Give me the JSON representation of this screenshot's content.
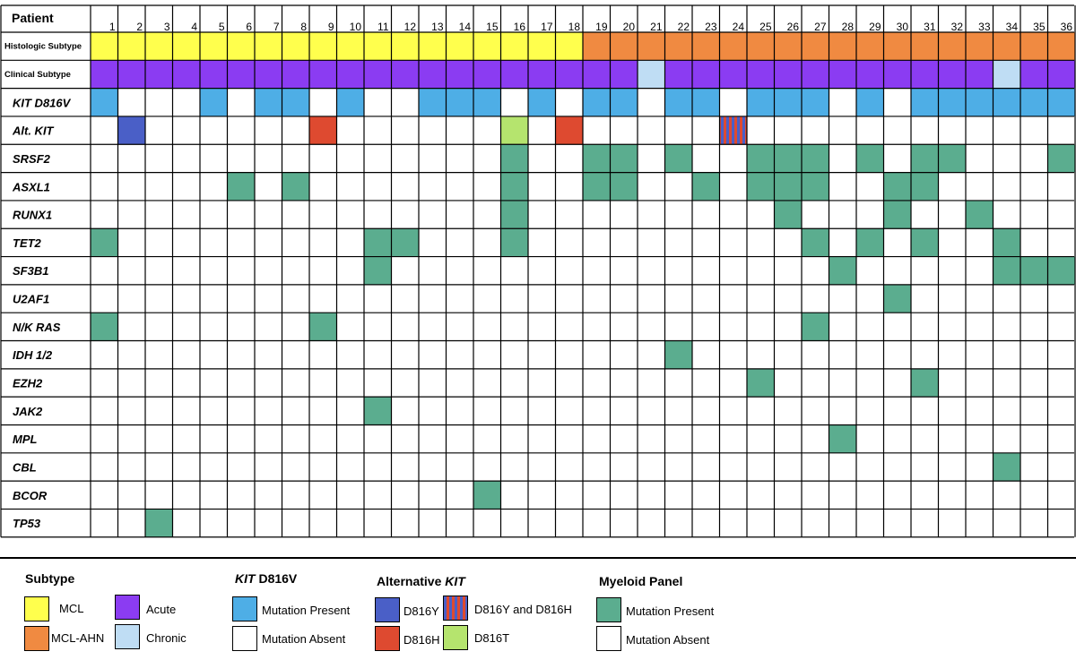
{
  "chart_data": {
    "type": "table",
    "title": "",
    "xlabel": "Patient",
    "patients": [
      "1",
      "2",
      "3",
      "4",
      "5",
      "6",
      "7",
      "8",
      "9",
      "10",
      "11",
      "12",
      "13",
      "14",
      "15",
      "16",
      "17",
      "18",
      "19",
      "20",
      "21",
      "22",
      "23",
      "24",
      "25",
      "26",
      "27",
      "28",
      "29",
      "30",
      "31",
      "32",
      "33",
      "34",
      "35",
      "36"
    ],
    "rows": [
      {
        "label": "Histologic Subtype",
        "kind": "subtype",
        "values": [
          "MCL",
          "MCL",
          "MCL",
          "MCL",
          "MCL",
          "MCL",
          "MCL",
          "MCL",
          "MCL",
          "MCL",
          "MCL",
          "MCL",
          "MCL",
          "MCL",
          "MCL",
          "MCL",
          "MCL",
          "MCL",
          "MCL-AHN",
          "MCL-AHN",
          "MCL-AHN",
          "MCL-AHN",
          "MCL-AHN",
          "MCL-AHN",
          "MCL-AHN",
          "MCL-AHN",
          "MCL-AHN",
          "MCL-AHN",
          "MCL-AHN",
          "MCL-AHN",
          "MCL-AHN",
          "MCL-AHN",
          "MCL-AHN",
          "MCL-AHN",
          "MCL-AHN",
          "MCL-AHN"
        ]
      },
      {
        "label": "Clinical Subtype",
        "kind": "subtype",
        "values": [
          "Acute",
          "Acute",
          "Acute",
          "Acute",
          "Acute",
          "Acute",
          "Acute",
          "Acute",
          "Acute",
          "Acute",
          "Acute",
          "Acute",
          "Acute",
          "Acute",
          "Acute",
          "Acute",
          "Acute",
          "Acute",
          "Acute",
          "Acute",
          "Chronic",
          "Acute",
          "Acute",
          "Acute",
          "Acute",
          "Acute",
          "Acute",
          "Acute",
          "Acute",
          "Acute",
          "Acute",
          "Acute",
          "Acute",
          "Chronic",
          "Acute",
          "Acute"
        ]
      },
      {
        "label": "KIT D816V",
        "kind": "gene",
        "values": [
          1,
          0,
          0,
          0,
          1,
          0,
          1,
          1,
          0,
          1,
          0,
          0,
          1,
          1,
          1,
          0,
          1,
          0,
          1,
          1,
          0,
          1,
          1,
          0,
          1,
          1,
          1,
          0,
          1,
          0,
          1,
          1,
          1,
          1,
          1,
          1
        ]
      },
      {
        "label": "Alt. KIT",
        "kind": "gene",
        "values": [
          null,
          "D816Y",
          null,
          null,
          null,
          null,
          null,
          null,
          "D816H",
          null,
          null,
          null,
          null,
          null,
          null,
          "D816T",
          null,
          "D816H",
          null,
          null,
          null,
          null,
          null,
          "D816Y and D816H",
          null,
          null,
          null,
          null,
          null,
          null,
          null,
          null,
          null,
          null,
          null,
          null
        ]
      },
      {
        "label": "SRSF2",
        "kind": "gene",
        "values": [
          0,
          0,
          0,
          0,
          0,
          0,
          0,
          0,
          0,
          0,
          0,
          0,
          0,
          0,
          0,
          1,
          0,
          0,
          1,
          1,
          0,
          1,
          0,
          0,
          1,
          1,
          1,
          0,
          1,
          0,
          1,
          1,
          0,
          0,
          0,
          1
        ]
      },
      {
        "label": "ASXL1",
        "kind": "gene",
        "values": [
          0,
          0,
          0,
          0,
          0,
          1,
          0,
          1,
          0,
          0,
          0,
          0,
          0,
          0,
          0,
          1,
          0,
          0,
          1,
          1,
          0,
          0,
          1,
          0,
          1,
          1,
          1,
          0,
          0,
          1,
          1,
          0,
          0,
          0,
          0,
          0
        ]
      },
      {
        "label": "RUNX1",
        "kind": "gene",
        "values": [
          0,
          0,
          0,
          0,
          0,
          0,
          0,
          0,
          0,
          0,
          0,
          0,
          0,
          0,
          0,
          1,
          0,
          0,
          0,
          0,
          0,
          0,
          0,
          0,
          0,
          1,
          0,
          0,
          0,
          1,
          0,
          0,
          1,
          0,
          0,
          0
        ]
      },
      {
        "label": "TET2",
        "kind": "gene",
        "values": [
          1,
          0,
          0,
          0,
          0,
          0,
          0,
          0,
          0,
          0,
          1,
          1,
          0,
          0,
          0,
          1,
          0,
          0,
          0,
          0,
          0,
          0,
          0,
          0,
          0,
          0,
          1,
          0,
          1,
          0,
          1,
          0,
          0,
          1,
          0,
          0
        ]
      },
      {
        "label": "SF3B1",
        "kind": "gene",
        "values": [
          0,
          0,
          0,
          0,
          0,
          0,
          0,
          0,
          0,
          0,
          1,
          0,
          0,
          0,
          0,
          0,
          0,
          0,
          0,
          0,
          0,
          0,
          0,
          0,
          0,
          0,
          0,
          1,
          0,
          0,
          0,
          0,
          0,
          1,
          1,
          1
        ]
      },
      {
        "label": "U2AF1",
        "kind": "gene",
        "values": [
          0,
          0,
          0,
          0,
          0,
          0,
          0,
          0,
          0,
          0,
          0,
          0,
          0,
          0,
          0,
          0,
          0,
          0,
          0,
          0,
          0,
          0,
          0,
          0,
          0,
          0,
          0,
          0,
          0,
          1,
          0,
          0,
          0,
          0,
          0,
          0
        ]
      },
      {
        "label": "N/K RAS",
        "kind": "gene",
        "values": [
          1,
          0,
          0,
          0,
          0,
          0,
          0,
          0,
          1,
          0,
          0,
          0,
          0,
          0,
          0,
          0,
          0,
          0,
          0,
          0,
          0,
          0,
          0,
          0,
          0,
          0,
          1,
          0,
          0,
          0,
          0,
          0,
          0,
          0,
          0,
          0
        ]
      },
      {
        "label": "IDH 1/2",
        "kind": "gene",
        "values": [
          0,
          0,
          0,
          0,
          0,
          0,
          0,
          0,
          0,
          0,
          0,
          0,
          0,
          0,
          0,
          0,
          0,
          0,
          0,
          0,
          0,
          1,
          0,
          0,
          0,
          0,
          0,
          0,
          0,
          0,
          0,
          0,
          0,
          0,
          0,
          0
        ]
      },
      {
        "label": "EZH2",
        "kind": "gene",
        "values": [
          0,
          0,
          0,
          0,
          0,
          0,
          0,
          0,
          0,
          0,
          0,
          0,
          0,
          0,
          0,
          0,
          0,
          0,
          0,
          0,
          0,
          0,
          0,
          0,
          1,
          0,
          0,
          0,
          0,
          0,
          1,
          0,
          0,
          0,
          0,
          0
        ]
      },
      {
        "label": "JAK2",
        "kind": "gene",
        "values": [
          0,
          0,
          0,
          0,
          0,
          0,
          0,
          0,
          0,
          0,
          1,
          0,
          0,
          0,
          0,
          0,
          0,
          0,
          0,
          0,
          0,
          0,
          0,
          0,
          0,
          0,
          0,
          0,
          0,
          0,
          0,
          0,
          0,
          0,
          0,
          0
        ]
      },
      {
        "label": "MPL",
        "kind": "gene",
        "values": [
          0,
          0,
          0,
          0,
          0,
          0,
          0,
          0,
          0,
          0,
          0,
          0,
          0,
          0,
          0,
          0,
          0,
          0,
          0,
          0,
          0,
          0,
          0,
          0,
          0,
          0,
          0,
          1,
          0,
          0,
          0,
          0,
          0,
          0,
          0,
          0
        ]
      },
      {
        "label": "CBL",
        "kind": "gene",
        "values": [
          0,
          0,
          0,
          0,
          0,
          0,
          0,
          0,
          0,
          0,
          0,
          0,
          0,
          0,
          0,
          0,
          0,
          0,
          0,
          0,
          0,
          0,
          0,
          0,
          0,
          0,
          0,
          0,
          0,
          0,
          0,
          0,
          0,
          1,
          0,
          0
        ]
      },
      {
        "label": "BCOR",
        "kind": "gene",
        "values": [
          0,
          0,
          0,
          0,
          0,
          0,
          0,
          0,
          0,
          0,
          0,
          0,
          0,
          0,
          1,
          0,
          0,
          0,
          0,
          0,
          0,
          0,
          0,
          0,
          0,
          0,
          0,
          0,
          0,
          0,
          0,
          0,
          0,
          0,
          0,
          0
        ]
      },
      {
        "label": "TP53",
        "kind": "gene",
        "values": [
          0,
          0,
          1,
          0,
          0,
          0,
          0,
          0,
          0,
          0,
          0,
          0,
          0,
          0,
          0,
          0,
          0,
          0,
          0,
          0,
          0,
          0,
          0,
          0,
          0,
          0,
          0,
          0,
          0,
          0,
          0,
          0,
          0,
          0,
          0,
          0
        ]
      }
    ],
    "colors": {
      "MCL": "#FFFF4D",
      "MCL-AHN": "#F08A41",
      "Acute": "#8B3CF2",
      "Chronic": "#BFDDF4",
      "KIT D816V": "#4EAEE6",
      "D816Y": "#4A5FC7",
      "D816H": "#DE4A30",
      "D816T": "#B5E46E",
      "D816Y and D816H": "#8A5AA8",
      "Myeloid Panel": "#5BAD8F",
      "absent": "#FFFFFF"
    },
    "legend": {
      "subtype": {
        "title": "Subtype",
        "items": [
          "MCL",
          "MCL-AHN",
          "Acute",
          "Chronic"
        ]
      },
      "kit": {
        "title_italic": "KIT",
        "title_rest": " D816V",
        "present": "Mutation Present",
        "absent": "Mutation Absent"
      },
      "alt": {
        "title_plain": "Alternative ",
        "title_italic": "KIT",
        "items": [
          "D816Y",
          "D816H",
          "D816Y and D816H",
          "D816T"
        ]
      },
      "myeloid": {
        "title": "Myeloid Panel",
        "present": "Mutation Present",
        "absent": "Mutation Absent"
      }
    }
  }
}
